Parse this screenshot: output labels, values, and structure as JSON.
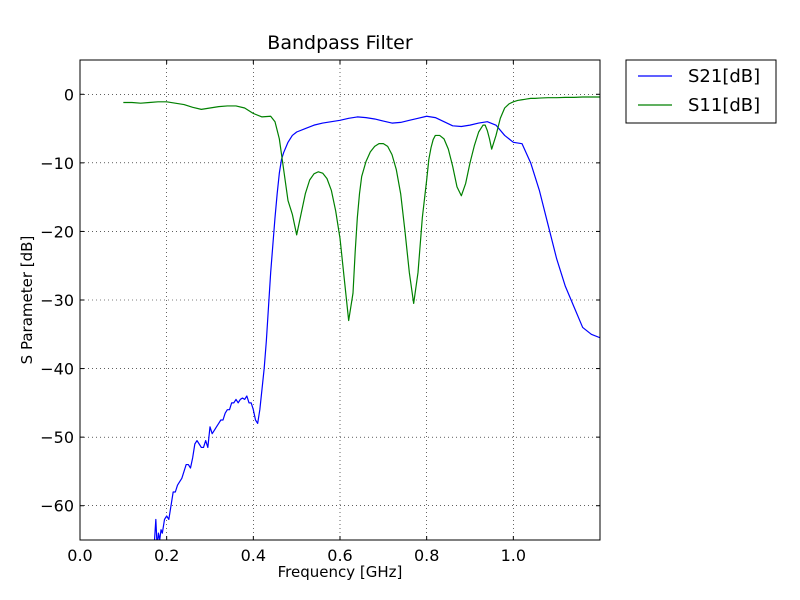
{
  "chart_data": {
    "type": "line",
    "title": "Bandpass Filter",
    "xlabel": "Frequency [GHz]",
    "ylabel": "S Parameter [dB]",
    "xlim": [
      0.0,
      1.2
    ],
    "ylim": [
      -65,
      5
    ],
    "x_ticks": [
      0.0,
      0.2,
      0.4,
      0.6,
      0.8,
      1.0
    ],
    "x_tick_labels": [
      "0.0",
      "0.2",
      "0.4",
      "0.6",
      "0.8",
      "1.0"
    ],
    "y_ticks": [
      0,
      -10,
      -20,
      -30,
      -40,
      -50,
      -60
    ],
    "y_tick_labels": [
      "0",
      "−10",
      "−20",
      "−30",
      "−40",
      "−50",
      "−60"
    ],
    "grid": true,
    "legend_position": "outside-top-right",
    "series": [
      {
        "name": "S21[dB]",
        "color": "#0000ff",
        "x": [
          0.172,
          0.175,
          0.178,
          0.181,
          0.184,
          0.187,
          0.19,
          0.195,
          0.2,
          0.205,
          0.21,
          0.215,
          0.22,
          0.225,
          0.23,
          0.235,
          0.24,
          0.245,
          0.25,
          0.255,
          0.26,
          0.265,
          0.27,
          0.275,
          0.28,
          0.285,
          0.29,
          0.295,
          0.3,
          0.305,
          0.31,
          0.315,
          0.32,
          0.325,
          0.33,
          0.335,
          0.34,
          0.345,
          0.35,
          0.355,
          0.36,
          0.365,
          0.37,
          0.375,
          0.38,
          0.385,
          0.39,
          0.395,
          0.4,
          0.405,
          0.41,
          0.415,
          0.42,
          0.425,
          0.43,
          0.435,
          0.44,
          0.445,
          0.45,
          0.455,
          0.46,
          0.465,
          0.47,
          0.48,
          0.49,
          0.5,
          0.52,
          0.54,
          0.56,
          0.58,
          0.6,
          0.62,
          0.64,
          0.66,
          0.68,
          0.7,
          0.72,
          0.74,
          0.76,
          0.78,
          0.8,
          0.82,
          0.84,
          0.86,
          0.88,
          0.9,
          0.92,
          0.94,
          0.96,
          0.98,
          1.0,
          1.02,
          1.04,
          1.06,
          1.08,
          1.1,
          1.12,
          1.14,
          1.16,
          1.18,
          1.2
        ],
        "y": [
          -65.0,
          -62.0,
          -66.0,
          -64.0,
          -65.0,
          -63.5,
          -64.0,
          -62.0,
          -61.5,
          -62.0,
          -60.0,
          -58.0,
          -58.0,
          -57.0,
          -56.5,
          -56.0,
          -55.0,
          -54.0,
          -54.0,
          -54.5,
          -53.0,
          -51.0,
          -50.5,
          -51.0,
          -51.5,
          -51.5,
          -50.5,
          -51.5,
          -48.5,
          -49.5,
          -49.0,
          -48.5,
          -48.0,
          -47.5,
          -47.5,
          -46.5,
          -46.0,
          -46.0,
          -45.0,
          -45.0,
          -44.5,
          -45.0,
          -44.5,
          -44.3,
          -44.5,
          -44.0,
          -45.0,
          -45.0,
          -46.0,
          -47.5,
          -48.0,
          -46.0,
          -43.0,
          -40.0,
          -36.0,
          -31.0,
          -26.0,
          -22.0,
          -18.0,
          -14.5,
          -11.5,
          -9.5,
          -8.5,
          -7.0,
          -6.0,
          -5.5,
          -5.0,
          -4.5,
          -4.2,
          -4.0,
          -3.8,
          -3.5,
          -3.3,
          -3.4,
          -3.6,
          -3.9,
          -4.2,
          -4.1,
          -3.8,
          -3.5,
          -3.2,
          -3.4,
          -4.0,
          -4.6,
          -4.7,
          -4.5,
          -4.2,
          -4.0,
          -4.5,
          -6.0,
          -7.0,
          -7.2,
          -10.0,
          -14.0,
          -19.0,
          -24.0,
          -28.0,
          -31.0,
          -34.0,
          -35.0,
          -35.5
        ]
      },
      {
        "name": "S11[dB]",
        "color": "#008000",
        "x": [
          0.1,
          0.12,
          0.14,
          0.16,
          0.18,
          0.2,
          0.22,
          0.24,
          0.26,
          0.28,
          0.3,
          0.32,
          0.34,
          0.36,
          0.38,
          0.4,
          0.42,
          0.44,
          0.45,
          0.46,
          0.47,
          0.48,
          0.49,
          0.5,
          0.51,
          0.52,
          0.53,
          0.54,
          0.55,
          0.56,
          0.57,
          0.58,
          0.59,
          0.6,
          0.61,
          0.62,
          0.63,
          0.635,
          0.64,
          0.645,
          0.65,
          0.66,
          0.67,
          0.68,
          0.69,
          0.7,
          0.71,
          0.72,
          0.73,
          0.74,
          0.75,
          0.76,
          0.77,
          0.78,
          0.79,
          0.8,
          0.805,
          0.81,
          0.815,
          0.82,
          0.83,
          0.84,
          0.85,
          0.86,
          0.87,
          0.88,
          0.89,
          0.9,
          0.91,
          0.92,
          0.93,
          0.935,
          0.94,
          0.945,
          0.95,
          0.96,
          0.97,
          0.98,
          0.99,
          1.0,
          1.01,
          1.02,
          1.025,
          1.03,
          1.04,
          1.05,
          1.06,
          1.08,
          1.1,
          1.12,
          1.14,
          1.16,
          1.18,
          1.2
        ],
        "y": [
          -1.2,
          -1.2,
          -1.3,
          -1.2,
          -1.1,
          -1.1,
          -1.3,
          -1.5,
          -1.9,
          -2.2,
          -2.0,
          -1.8,
          -1.7,
          -1.7,
          -2.0,
          -2.8,
          -3.3,
          -3.2,
          -4.0,
          -6.5,
          -11.0,
          -15.5,
          -17.5,
          -20.5,
          -17.5,
          -14.5,
          -12.5,
          -11.6,
          -11.3,
          -11.5,
          -12.3,
          -14.0,
          -17.0,
          -21.0,
          -27.0,
          -33.0,
          -29.0,
          -23.0,
          -18.0,
          -14.5,
          -12.0,
          -9.8,
          -8.4,
          -7.6,
          -7.2,
          -7.2,
          -7.6,
          -8.8,
          -11.0,
          -14.5,
          -20.0,
          -26.0,
          -30.5,
          -26.0,
          -18.0,
          -12.5,
          -9.5,
          -7.8,
          -6.6,
          -6.0,
          -6.0,
          -6.5,
          -8.0,
          -10.5,
          -13.5,
          -14.8,
          -13.0,
          -10.0,
          -7.5,
          -5.5,
          -4.5,
          -4.5,
          -5.3,
          -6.5,
          -8.0,
          -6.0,
          -3.5,
          -2.0,
          -1.4,
          -1.1,
          -0.9,
          -0.8,
          -0.75,
          -0.7,
          -0.6,
          -0.6,
          -0.55,
          -0.5,
          -0.5,
          -0.45,
          -0.45,
          -0.4,
          -0.4,
          -0.4
        ]
      }
    ]
  }
}
